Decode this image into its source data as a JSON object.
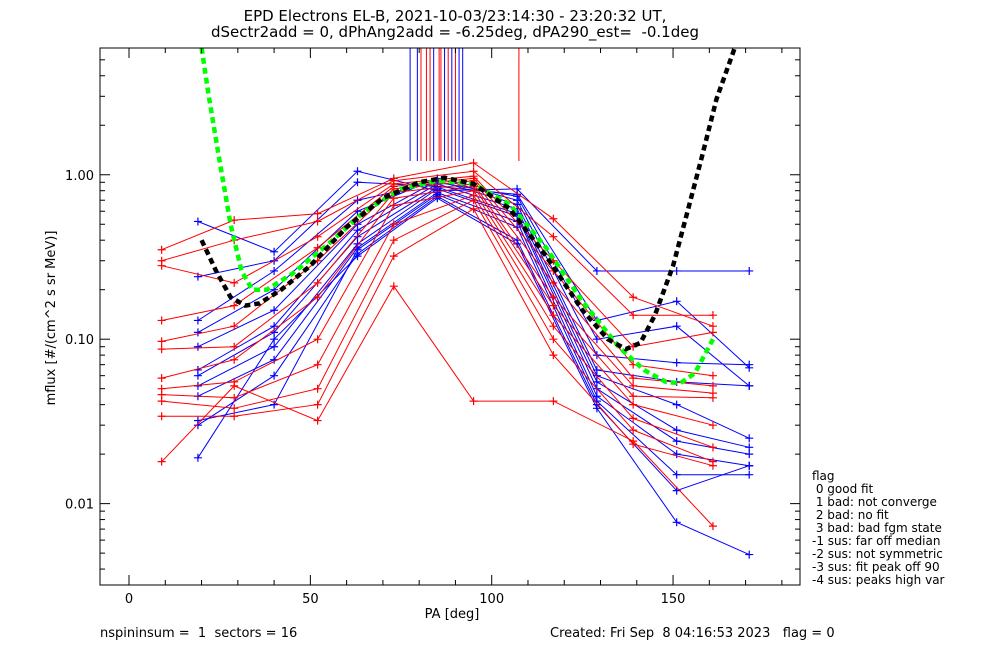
{
  "title": {
    "line1": "EPD Electrons EL-B, 2021-10-03/23:14:30 - 23:20:32 UT,",
    "line2": "dSectr2add = 0, dPhAng2add = -6.25deg, dPA290_est=  -0.1deg"
  },
  "footer": {
    "left": "nspininsum =  1  sectors = 16",
    "right": "Created: Fri Sep  8 04:16:53 2023   flag = 0"
  },
  "flag_legend": {
    "title": "flag",
    "items": [
      " 0 good fit",
      " 1 bad: not converge",
      " 2 bad: no fit",
      " 3 bad: bad fgm state",
      "-1 sus: far off median",
      "-2 sus: not symmetric",
      "-3 sus: fit peak off 90",
      "-4 sus: peaks high var"
    ]
  },
  "colors": {
    "red": "#ff0000",
    "blue": "#0000ff",
    "green_fit": "#00ff00",
    "black_fit": "#000000"
  },
  "chart_data": {
    "type": "line",
    "xlabel": "PA [deg]",
    "ylabel": "mflux [#/(cm^2 s sr MeV)]",
    "xlim": [
      -8,
      185
    ],
    "ylim": [
      0.0032,
      5.9
    ],
    "yscale": "log",
    "xticks": [
      0,
      50,
      100,
      150
    ],
    "yticks": [
      0.01,
      0.1,
      1.0
    ],
    "ytick_labels": [
      "0.01",
      "0.10",
      "1.00"
    ],
    "vertical_markers": [
      {
        "x": 77.5,
        "color": "blue"
      },
      {
        "x": 79.5,
        "color": "blue"
      },
      {
        "x": 80.5,
        "color": "red"
      },
      {
        "x": 82.0,
        "color": "red"
      },
      {
        "x": 83.0,
        "color": "red"
      },
      {
        "x": 84.0,
        "color": "blue"
      },
      {
        "x": 85.5,
        "color": "red"
      },
      {
        "x": 86.0,
        "color": "red"
      },
      {
        "x": 87.0,
        "color": "blue"
      },
      {
        "x": 88.0,
        "color": "red"
      },
      {
        "x": 89.0,
        "color": "blue"
      },
      {
        "x": 90.0,
        "color": "red"
      },
      {
        "x": 91.0,
        "color": "blue"
      },
      {
        "x": 92.0,
        "color": "blue"
      },
      {
        "x": 107.5,
        "color": "red"
      }
    ],
    "series": [
      {
        "color": "blue",
        "points": [
          [
            19,
            0.52
          ],
          [
            40,
            0.34
          ],
          [
            63,
            1.05
          ],
          [
            85,
            0.8
          ],
          [
            107,
            0.82
          ],
          [
            129,
            0.26
          ],
          [
            151,
            0.26
          ],
          [
            171,
            0.26
          ]
        ]
      },
      {
        "color": "blue",
        "points": [
          [
            19,
            0.24
          ],
          [
            40,
            0.3
          ],
          [
            63,
            0.9
          ],
          [
            85,
            0.85
          ],
          [
            107,
            0.76
          ],
          [
            129,
            0.13
          ],
          [
            151,
            0.17
          ],
          [
            171,
            0.067
          ]
        ]
      },
      {
        "color": "blue",
        "points": [
          [
            19,
            0.13
          ],
          [
            40,
            0.26
          ],
          [
            63,
            0.7
          ],
          [
            85,
            0.9
          ],
          [
            107,
            0.74
          ],
          [
            129,
            0.1
          ],
          [
            151,
            0.12
          ],
          [
            171,
            0.052
          ]
        ]
      },
      {
        "color": "blue",
        "points": [
          [
            19,
            0.11
          ],
          [
            40,
            0.2
          ],
          [
            63,
            0.6
          ],
          [
            85,
            0.95
          ],
          [
            107,
            0.7
          ],
          [
            129,
            0.08
          ],
          [
            151,
            0.072
          ],
          [
            171,
            0.07
          ]
        ]
      },
      {
        "color": "blue",
        "points": [
          [
            19,
            0.09
          ],
          [
            40,
            0.15
          ],
          [
            63,
            0.5
          ],
          [
            85,
            0.92
          ],
          [
            107,
            0.66
          ],
          [
            129,
            0.065
          ],
          [
            151,
            0.055
          ],
          [
            171,
            0.052
          ]
        ]
      },
      {
        "color": "blue",
        "points": [
          [
            19,
            0.065
          ],
          [
            40,
            0.12
          ],
          [
            63,
            0.46
          ],
          [
            85,
            0.88
          ],
          [
            107,
            0.62
          ],
          [
            129,
            0.06
          ],
          [
            151,
            0.04
          ],
          [
            171,
            0.025
          ]
        ]
      },
      {
        "color": "blue",
        "points": [
          [
            19,
            0.06
          ],
          [
            40,
            0.11
          ],
          [
            63,
            0.42
          ],
          [
            85,
            0.84
          ],
          [
            107,
            0.58
          ],
          [
            129,
            0.055
          ],
          [
            151,
            0.028
          ],
          [
            171,
            0.022
          ]
        ]
      },
      {
        "color": "blue",
        "points": [
          [
            19,
            0.052
          ],
          [
            40,
            0.09
          ],
          [
            63,
            0.38
          ],
          [
            85,
            0.82
          ],
          [
            107,
            0.56
          ],
          [
            129,
            0.05
          ],
          [
            151,
            0.024
          ],
          [
            171,
            0.02
          ]
        ]
      },
      {
        "color": "blue",
        "points": [
          [
            19,
            0.045
          ],
          [
            40,
            0.075
          ],
          [
            63,
            0.36
          ],
          [
            85,
            0.78
          ],
          [
            107,
            0.52
          ],
          [
            129,
            0.045
          ],
          [
            151,
            0.02
          ],
          [
            171,
            0.017
          ]
        ]
      },
      {
        "color": "blue",
        "points": [
          [
            19,
            0.032
          ],
          [
            40,
            0.04
          ],
          [
            63,
            0.35
          ],
          [
            85,
            0.76
          ],
          [
            107,
            0.48
          ],
          [
            129,
            0.042
          ],
          [
            151,
            0.015
          ],
          [
            171,
            0.015
          ]
        ]
      },
      {
        "color": "blue",
        "points": [
          [
            19,
            0.03
          ],
          [
            40,
            0.06
          ],
          [
            63,
            0.33
          ],
          [
            85,
            0.74
          ],
          [
            107,
            0.4
          ],
          [
            129,
            0.04
          ],
          [
            151,
            0.012
          ],
          [
            171,
            0.017
          ]
        ]
      },
      {
        "color": "blue",
        "points": [
          [
            19,
            0.019
          ],
          [
            40,
            0.1
          ],
          [
            63,
            0.32
          ],
          [
            85,
            0.72
          ],
          [
            107,
            0.38
          ],
          [
            129,
            0.038
          ],
          [
            151,
            0.0077
          ],
          [
            171,
            0.0049
          ]
        ]
      },
      {
        "color": "red",
        "points": [
          [
            9,
            0.35
          ],
          [
            29,
            0.53
          ],
          [
            52,
            0.58
          ],
          [
            73,
            0.95
          ],
          [
            95,
            1.18
          ],
          [
            117,
            0.54
          ],
          [
            139,
            0.18
          ],
          [
            161,
            0.12
          ]
        ]
      },
      {
        "color": "red",
        "points": [
          [
            9,
            0.3
          ],
          [
            29,
            0.4
          ],
          [
            52,
            0.52
          ],
          [
            73,
            0.92
          ],
          [
            95,
            1.05
          ],
          [
            117,
            0.42
          ],
          [
            139,
            0.14
          ],
          [
            161,
            0.14
          ]
        ]
      },
      {
        "color": "red",
        "points": [
          [
            9,
            0.28
          ],
          [
            29,
            0.22
          ],
          [
            52,
            0.42
          ],
          [
            73,
            0.88
          ],
          [
            95,
            0.98
          ],
          [
            117,
            0.3
          ],
          [
            139,
            0.09
          ],
          [
            161,
            0.11
          ]
        ]
      },
      {
        "color": "red",
        "points": [
          [
            9,
            0.13
          ],
          [
            29,
            0.16
          ],
          [
            52,
            0.36
          ],
          [
            73,
            0.85
          ],
          [
            95,
            0.95
          ],
          [
            117,
            0.26
          ],
          [
            139,
            0.07
          ],
          [
            161,
            0.06
          ]
        ]
      },
      {
        "color": "red",
        "points": [
          [
            9,
            0.097
          ],
          [
            29,
            0.12
          ],
          [
            52,
            0.3
          ],
          [
            73,
            0.82
          ],
          [
            95,
            0.92
          ],
          [
            117,
            0.22
          ],
          [
            139,
            0.058
          ],
          [
            161,
            0.052
          ]
        ]
      },
      {
        "color": "red",
        "points": [
          [
            9,
            0.087
          ],
          [
            29,
            0.09
          ],
          [
            52,
            0.22
          ],
          [
            73,
            0.78
          ],
          [
            95,
            0.88
          ],
          [
            117,
            0.18
          ],
          [
            139,
            0.052
          ],
          [
            161,
            0.047
          ]
        ]
      },
      {
        "color": "red",
        "points": [
          [
            9,
            0.058
          ],
          [
            29,
            0.075
          ],
          [
            52,
            0.18
          ],
          [
            73,
            0.72
          ],
          [
            95,
            0.85
          ],
          [
            117,
            0.16
          ],
          [
            139,
            0.045
          ],
          [
            161,
            0.044
          ]
        ]
      },
      {
        "color": "red",
        "points": [
          [
            9,
            0.05
          ],
          [
            29,
            0.055
          ],
          [
            52,
            0.1
          ],
          [
            73,
            0.65
          ],
          [
            95,
            0.8
          ],
          [
            117,
            0.14
          ],
          [
            139,
            0.04
          ],
          [
            161,
            0.03
          ]
        ]
      },
      {
        "color": "red",
        "points": [
          [
            9,
            0.046
          ],
          [
            29,
            0.044
          ],
          [
            52,
            0.07
          ],
          [
            73,
            0.5
          ],
          [
            95,
            0.75
          ],
          [
            117,
            0.12
          ],
          [
            139,
            0.033
          ],
          [
            161,
            0.022
          ]
        ]
      },
      {
        "color": "red",
        "points": [
          [
            9,
            0.042
          ],
          [
            29,
            0.038
          ],
          [
            52,
            0.05
          ],
          [
            73,
            0.4
          ],
          [
            95,
            0.7
          ],
          [
            117,
            0.1
          ],
          [
            139,
            0.028
          ],
          [
            161,
            0.018
          ]
        ]
      },
      {
        "color": "red",
        "points": [
          [
            9,
            0.034
          ],
          [
            29,
            0.034
          ],
          [
            52,
            0.04
          ],
          [
            73,
            0.32
          ],
          [
            95,
            0.62
          ],
          [
            117,
            0.08
          ],
          [
            139,
            0.023
          ],
          [
            161,
            0.017
          ]
        ]
      },
      {
        "color": "red",
        "points": [
          [
            9,
            0.018
          ],
          [
            29,
            0.052
          ],
          [
            52,
            0.032
          ],
          [
            73,
            0.21
          ],
          [
            95,
            0.042
          ],
          [
            117,
            0.042
          ],
          [
            139,
            0.024
          ],
          [
            161,
            0.0073
          ]
        ]
      }
    ],
    "fit_curves": [
      {
        "color": "green_fit",
        "points": [
          [
            20,
            5.9
          ],
          [
            22,
            3.0
          ],
          [
            25,
            1.2
          ],
          [
            28,
            0.5
          ],
          [
            31,
            0.26
          ],
          [
            34,
            0.2
          ],
          [
            38,
            0.2
          ],
          [
            45,
            0.25
          ],
          [
            55,
            0.38
          ],
          [
            65,
            0.6
          ],
          [
            75,
            0.82
          ],
          [
            85,
            0.92
          ],
          [
            95,
            0.88
          ],
          [
            105,
            0.66
          ],
          [
            115,
            0.36
          ],
          [
            125,
            0.17
          ],
          [
            135,
            0.09
          ],
          [
            142,
            0.065
          ],
          [
            148,
            0.055
          ],
          [
            152,
            0.054
          ],
          [
            156,
            0.062
          ],
          [
            161,
            0.1
          ]
        ]
      },
      {
        "color": "black_fit",
        "points": [
          [
            20,
            0.4
          ],
          [
            24,
            0.26
          ],
          [
            28,
            0.18
          ],
          [
            32,
            0.16
          ],
          [
            36,
            0.165
          ],
          [
            42,
            0.2
          ],
          [
            50,
            0.28
          ],
          [
            60,
            0.48
          ],
          [
            70,
            0.72
          ],
          [
            80,
            0.9
          ],
          [
            87,
            0.96
          ],
          [
            95,
            0.88
          ],
          [
            105,
            0.62
          ],
          [
            115,
            0.32
          ],
          [
            125,
            0.15
          ],
          [
            132,
            0.1
          ],
          [
            137,
            0.087
          ],
          [
            141,
            0.095
          ],
          [
            145,
            0.14
          ],
          [
            150,
            0.28
          ],
          [
            154,
            0.6
          ],
          [
            158,
            1.3
          ],
          [
            162,
            2.9
          ],
          [
            167,
            5.9
          ]
        ]
      }
    ]
  }
}
